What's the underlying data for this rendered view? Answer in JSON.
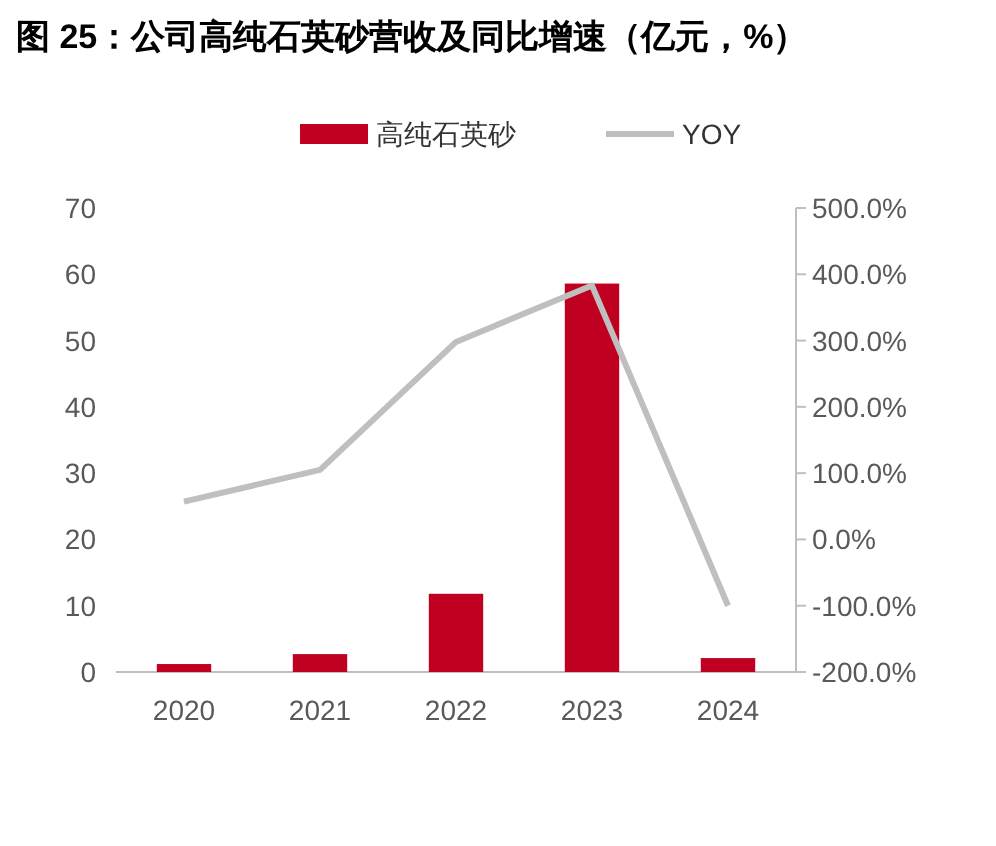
{
  "chart_data": {
    "type": "bar",
    "title": "图 25：公司高纯石英砂营收及同比增速（亿元，%）",
    "categories": [
      "2020",
      "2021",
      "2022",
      "2023",
      "2024"
    ],
    "series": [
      {
        "name": "高纯石英砂",
        "color": "#c00020",
        "values": [
          1.2,
          2.7,
          11.8,
          58.6,
          2.1
        ]
      },
      {
        "name": "YOY",
        "type": "line",
        "axis": "y2",
        "color": "#bfbfbf",
        "values": [
          57,
          105,
          298,
          383,
          -100
        ]
      }
    ],
    "ylim": [
      0,
      70
    ],
    "yticks": [
      0,
      10,
      20,
      30,
      40,
      50,
      60,
      70
    ],
    "y2lim": [
      -200,
      500
    ],
    "y2ticks": [
      {
        "value": -200,
        "label": "-200.0%"
      },
      {
        "value": -100,
        "label": "-100.0%"
      },
      {
        "value": 0,
        "label": "0.0%"
      },
      {
        "value": 100,
        "label": "100.0%"
      },
      {
        "value": 200,
        "label": "200.0%"
      },
      {
        "value": 300,
        "label": "300.0%"
      },
      {
        "value": 400,
        "label": "400.0%"
      },
      {
        "value": 500,
        "label": "500.0%"
      }
    ],
    "legend": "top",
    "grid": false,
    "marker": "none"
  }
}
